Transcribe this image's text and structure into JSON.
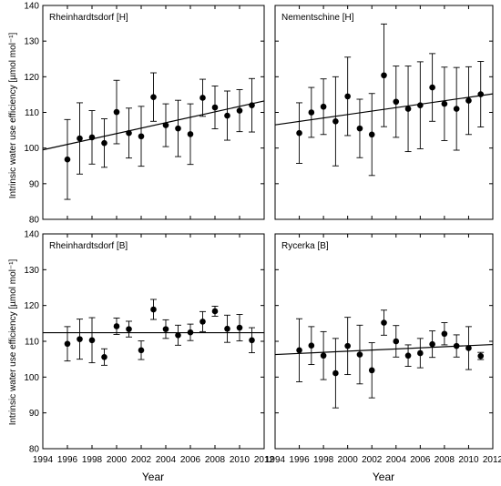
{
  "y_axis_label": "Intrinsic water use efficiency [µmol mol⁻¹]",
  "x_axis_labels": [
    "Year",
    "Year"
  ],
  "chart_data": [
    {
      "type": "scatter",
      "title": "Rheinhardtsdorf [H]",
      "xlim": [
        1994,
        2012
      ],
      "ylim": [
        80,
        140
      ],
      "xticks": [],
      "yticks": [
        80,
        90,
        100,
        110,
        120,
        130,
        140
      ],
      "series": [
        {
          "x": [
            1996,
            1997,
            1998,
            1999,
            2000,
            2001,
            2002,
            2003,
            2004,
            2005,
            2006,
            2007,
            2008,
            2009,
            2010,
            2011
          ],
          "y": [
            96.8,
            102.7,
            103.0,
            101.4,
            110.1,
            104.2,
            103.3,
            114.3,
            106.4,
            105.5,
            103.9,
            114.1,
            111.4,
            109.1,
            110.5,
            112.0
          ],
          "err": [
            11.2,
            10.0,
            7.5,
            6.8,
            8.9,
            7.0,
            8.4,
            6.8,
            6.0,
            7.9,
            8.5,
            5.2,
            6.0,
            6.9,
            5.9,
            7.5
          ]
        }
      ],
      "trend": {
        "x": [
          1994,
          2012
        ],
        "y": [
          99.5,
          113.2
        ]
      }
    },
    {
      "type": "scatter",
      "title": "Nementschine [H]",
      "xlim": [
        1994,
        2012
      ],
      "ylim": [
        80,
        140
      ],
      "xticks": [],
      "yticks": [],
      "series": [
        {
          "x": [
            1996,
            1997,
            1998,
            1999,
            2000,
            2001,
            2002,
            2003,
            2004,
            2005,
            2006,
            2007,
            2008,
            2009,
            2010,
            2011
          ],
          "y": [
            104.2,
            110.0,
            111.6,
            107.5,
            114.5,
            105.5,
            103.8,
            120.4,
            113.0,
            111.0,
            112.0,
            117.0,
            112.4,
            111.0,
            113.3,
            115.1
          ],
          "err": [
            8.5,
            7.0,
            7.8,
            12.5,
            11.0,
            8.2,
            11.5,
            14.4,
            10.0,
            12.0,
            12.2,
            9.5,
            10.3,
            11.6,
            9.5,
            9.2
          ]
        }
      ],
      "trend": {
        "x": [
          1994,
          2012
        ],
        "y": [
          106.5,
          115.2
        ]
      }
    },
    {
      "type": "scatter",
      "title": "Rheinhardtsdorf [B]",
      "xlim": [
        1994,
        2012
      ],
      "ylim": [
        80,
        140
      ],
      "xticks": [
        1994,
        1996,
        1998,
        2000,
        2002,
        2004,
        2006,
        2008,
        2010,
        2012
      ],
      "yticks": [
        80,
        90,
        100,
        110,
        120,
        130,
        140
      ],
      "series": [
        {
          "x": [
            1996,
            1997,
            1998,
            1999,
            2000,
            2001,
            2002,
            2003,
            2004,
            2005,
            2006,
            2007,
            2008,
            2009,
            2010,
            2011
          ],
          "y": [
            109.3,
            110.6,
            110.3,
            105.6,
            114.2,
            113.4,
            107.5,
            118.9,
            113.4,
            111.7,
            112.5,
            115.5,
            118.4,
            113.5,
            113.8,
            110.3
          ],
          "err": [
            4.8,
            5.6,
            6.3,
            2.3,
            2.3,
            2.2,
            2.6,
            2.8,
            2.6,
            2.8,
            2.3,
            2.8,
            1.4,
            3.8,
            3.7,
            3.5
          ]
        }
      ],
      "trend": {
        "x": [
          1994,
          2012
        ],
        "y": [
          112.4,
          112.4
        ]
      }
    },
    {
      "type": "scatter",
      "title": "Rycerka [B]",
      "xlim": [
        1994,
        2012
      ],
      "ylim": [
        80,
        140
      ],
      "xticks": [
        1994,
        1996,
        1998,
        2000,
        2002,
        2004,
        2006,
        2008,
        2010,
        2012
      ],
      "yticks": [],
      "series": [
        {
          "x": [
            1996,
            1997,
            1998,
            1999,
            2000,
            2001,
            2002,
            2003,
            2004,
            2005,
            2006,
            2007,
            2008,
            2009,
            2010,
            2011
          ],
          "y": [
            107.5,
            108.8,
            106.0,
            101.1,
            108.7,
            106.3,
            101.9,
            115.2,
            110.0,
            106.0,
            106.7,
            109.2,
            112.1,
            108.7,
            108.1,
            105.9
          ],
          "err": [
            8.8,
            5.3,
            6.7,
            9.7,
            8.0,
            8.2,
            7.7,
            3.5,
            4.4,
            3.0,
            4.1,
            3.7,
            3.1,
            3.1,
            6.0,
            1.0
          ]
        }
      ],
      "trend": {
        "x": [
          1994,
          2012
        ],
        "y": [
          106.3,
          109.1
        ]
      }
    }
  ]
}
